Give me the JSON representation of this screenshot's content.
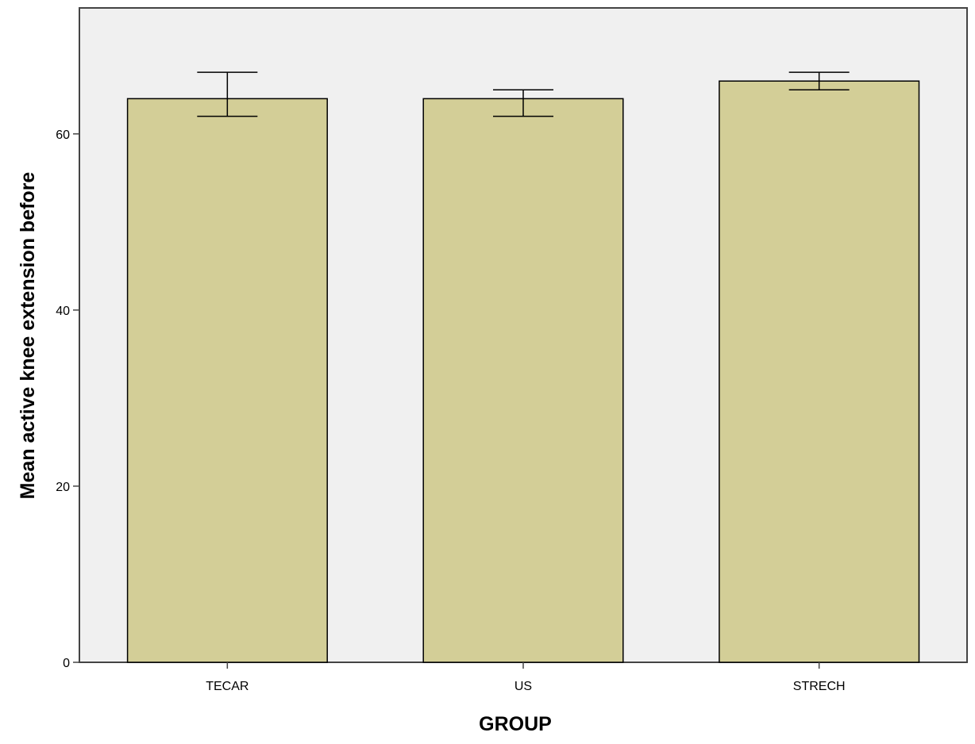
{
  "chart_data": {
    "type": "bar",
    "title": "",
    "xlabel": "GROUP",
    "ylabel": "Mean active knee extension before",
    "categories": [
      "TECAR",
      "US",
      "STRECH"
    ],
    "values": [
      64,
      64,
      66
    ],
    "error_bars": [
      {
        "low": 62,
        "high": 67
      },
      {
        "low": 62,
        "high": 65
      },
      {
        "low": 65,
        "high": 67
      }
    ],
    "ylim": [
      0,
      74.3
    ],
    "yticks": [
      0,
      20,
      40,
      60
    ],
    "ytick_labels": [
      "0",
      "20",
      "40",
      "60"
    ],
    "grid": false,
    "legend": "none",
    "colors": {
      "plot_background": "#f0f0f0",
      "bar_fill": "#d3ce97",
      "bar_stroke": "#000000",
      "axis": "#444444"
    }
  }
}
